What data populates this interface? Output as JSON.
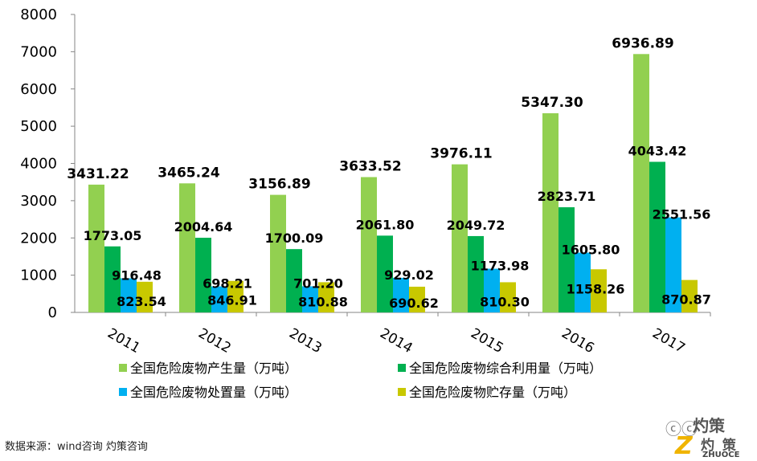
{
  "chart_data": {
    "type": "bar",
    "categories": [
      "2011",
      "2012",
      "2013",
      "2014",
      "2015",
      "2016",
      "2017"
    ],
    "series": [
      {
        "name": "全国危险废物产生量（万吨）",
        "color": "#92d050",
        "values": [
          3431.22,
          3465.24,
          3156.89,
          3633.52,
          3976.11,
          5347.3,
          6936.89
        ],
        "labels": [
          "3431.22",
          "3465.24",
          "3156.89",
          "3633.52",
          "3976.11",
          "5347.30",
          "6936.89"
        ]
      },
      {
        "name": "全国危险废物综合利用量（万吨）",
        "color": "#00b050",
        "values": [
          1773.05,
          2004.64,
          1700.09,
          2061.8,
          2049.72,
          2823.71,
          4043.42
        ],
        "labels": [
          "1773.05",
          "2004.64",
          "1700.09",
          "2061.80",
          "2049.72",
          "2823.71",
          "4043.42"
        ]
      },
      {
        "name": "全国危险废物处置量（万吨）",
        "color": "#00b0f0",
        "values": [
          916.48,
          698.21,
          701.2,
          929.02,
          1173.98,
          1605.8,
          2551.56
        ],
        "labels": [
          "916.48",
          "698.21",
          "701.20",
          "929.02",
          "1173.98",
          "1605.80",
          "2551.56"
        ]
      },
      {
        "name": "全国危险废物贮存量（万吨）",
        "color": "#c8c800",
        "values": [
          823.54,
          846.91,
          810.88,
          690.62,
          810.3,
          1158.26,
          870.87
        ],
        "labels": [
          "823.54",
          "846.91",
          "810.88",
          "690.62",
          "810.30",
          "1158.26",
          "870.87"
        ]
      }
    ],
    "y_ticks": [
      "0",
      "1000",
      "2000",
      "3000",
      "4000",
      "5000",
      "6000",
      "7000",
      "8000"
    ],
    "ylim": [
      0,
      8000
    ],
    "grid": false,
    "legend": "bottom"
  },
  "source": "数据来源：wind咨询 灼策咨询",
  "watermark": {
    "chat_glyph": "ⓒⓒ",
    "cn_top": "灼策",
    "cn_logo": "灼 策",
    "en": "ZHUOCE",
    "z": "Z"
  }
}
